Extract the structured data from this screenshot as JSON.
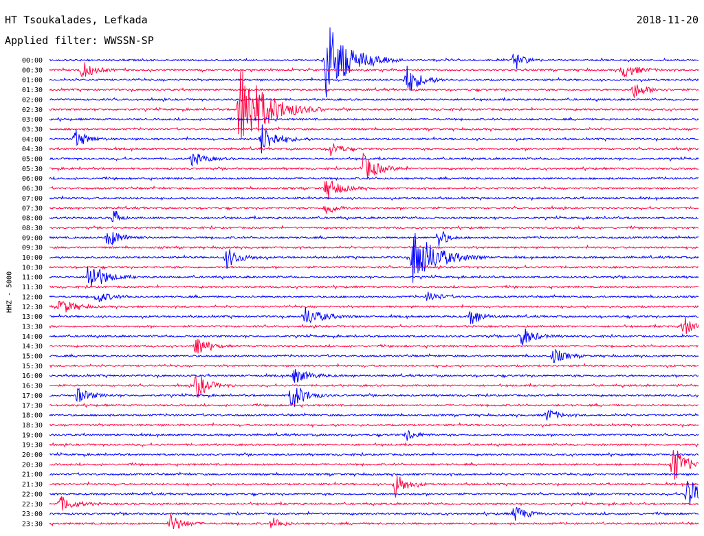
{
  "header": {
    "station": "HT Tsoukalades, Lefkada",
    "filter": "Applied filter: WWSSN-SP",
    "date": "2018-11-20"
  },
  "chart_data": {
    "type": "line",
    "title": "HT Tsoukalades, Lefkada",
    "subtitle": "Applied filter: WWSSN-SP",
    "date": "2018-11-20",
    "ylabel": "HHZ - 5000",
    "colors": [
      "#0000ff",
      "#ff0040"
    ],
    "rows": [
      "00:00",
      "00:30",
      "01:00",
      "01:30",
      "02:00",
      "02:30",
      "03:00",
      "03:30",
      "04:00",
      "04:30",
      "05:00",
      "05:30",
      "06:00",
      "06:30",
      "07:00",
      "07:30",
      "08:00",
      "08:30",
      "09:00",
      "09:30",
      "10:00",
      "10:30",
      "11:00",
      "11:30",
      "12:00",
      "12:30",
      "13:00",
      "13:30",
      "14:00",
      "14:30",
      "15:00",
      "15:30",
      "16:00",
      "16:30",
      "17:00",
      "17:30",
      "18:00",
      "18:30",
      "19:00",
      "19:30",
      "20:00",
      "20:30",
      "21:00",
      "21:30",
      "22:00",
      "22:30",
      "23:00",
      "23:30"
    ],
    "minutes_per_row": 30,
    "events": [
      {
        "row": 0,
        "minute": 12.8,
        "amp": 4.2,
        "dur": 1.6
      },
      {
        "row": 0,
        "minute": 21.5,
        "amp": 1.1,
        "dur": 0.6
      },
      {
        "row": 1,
        "minute": 1.5,
        "amp": 1.0,
        "dur": 0.8
      },
      {
        "row": 1,
        "minute": 26.5,
        "amp": 0.8,
        "dur": 1.0
      },
      {
        "row": 2,
        "minute": 16.5,
        "amp": 1.6,
        "dur": 0.9
      },
      {
        "row": 3,
        "minute": 27.0,
        "amp": 0.9,
        "dur": 0.8
      },
      {
        "row": 5,
        "minute": 8.8,
        "amp": 5.0,
        "dur": 1.8
      },
      {
        "row": 8,
        "minute": 1.2,
        "amp": 1.0,
        "dur": 0.8
      },
      {
        "row": 8,
        "minute": 9.8,
        "amp": 1.6,
        "dur": 1.0
      },
      {
        "row": 9,
        "minute": 13.0,
        "amp": 0.8,
        "dur": 0.7
      },
      {
        "row": 10,
        "minute": 6.6,
        "amp": 0.7,
        "dur": 0.9
      },
      {
        "row": 11,
        "minute": 14.5,
        "amp": 1.5,
        "dur": 1.0
      },
      {
        "row": 13,
        "minute": 12.8,
        "amp": 1.2,
        "dur": 0.9
      },
      {
        "row": 15,
        "minute": 12.8,
        "amp": 0.8,
        "dur": 0.6
      },
      {
        "row": 16,
        "minute": 3.0,
        "amp": 1.2,
        "dur": 0.3
      },
      {
        "row": 18,
        "minute": 2.7,
        "amp": 1.0,
        "dur": 0.9
      },
      {
        "row": 18,
        "minute": 18.0,
        "amp": 1.2,
        "dur": 0.5
      },
      {
        "row": 20,
        "minute": 8.2,
        "amp": 1.1,
        "dur": 0.9
      },
      {
        "row": 20,
        "minute": 16.8,
        "amp": 3.0,
        "dur": 1.6
      },
      {
        "row": 22,
        "minute": 1.8,
        "amp": 1.8,
        "dur": 1.0
      },
      {
        "row": 24,
        "minute": 2.2,
        "amp": 0.6,
        "dur": 0.9
      },
      {
        "row": 24,
        "minute": 17.5,
        "amp": 0.6,
        "dur": 0.8
      },
      {
        "row": 25,
        "minute": 0.5,
        "amp": 0.9,
        "dur": 0.9
      },
      {
        "row": 26,
        "minute": 11.8,
        "amp": 1.0,
        "dur": 1.2
      },
      {
        "row": 26,
        "minute": 19.5,
        "amp": 1.0,
        "dur": 0.7
      },
      {
        "row": 27,
        "minute": 29.3,
        "amp": 1.2,
        "dur": 0.6
      },
      {
        "row": 28,
        "minute": 21.8,
        "amp": 1.2,
        "dur": 0.8
      },
      {
        "row": 29,
        "minute": 6.8,
        "amp": 1.2,
        "dur": 0.7
      },
      {
        "row": 30,
        "minute": 23.3,
        "amp": 0.8,
        "dur": 0.8
      },
      {
        "row": 32,
        "minute": 11.3,
        "amp": 0.8,
        "dur": 1.0
      },
      {
        "row": 33,
        "minute": 6.8,
        "amp": 1.4,
        "dur": 0.8
      },
      {
        "row": 34,
        "minute": 1.3,
        "amp": 0.8,
        "dur": 0.9
      },
      {
        "row": 34,
        "minute": 11.2,
        "amp": 1.5,
        "dur": 0.9
      },
      {
        "row": 36,
        "minute": 23.0,
        "amp": 0.7,
        "dur": 0.7
      },
      {
        "row": 38,
        "minute": 16.5,
        "amp": 0.6,
        "dur": 0.7
      },
      {
        "row": 41,
        "minute": 28.8,
        "amp": 2.2,
        "dur": 0.8
      },
      {
        "row": 43,
        "minute": 16.0,
        "amp": 1.4,
        "dur": 0.7
      },
      {
        "row": 44,
        "minute": 29.5,
        "amp": 1.8,
        "dur": 0.8
      },
      {
        "row": 45,
        "minute": 0.5,
        "amp": 0.8,
        "dur": 1.0
      },
      {
        "row": 46,
        "minute": 21.5,
        "amp": 0.9,
        "dur": 0.8
      },
      {
        "row": 47,
        "minute": 5.6,
        "amp": 1.0,
        "dur": 0.8
      },
      {
        "row": 47,
        "minute": 10.3,
        "amp": 0.7,
        "dur": 0.6
      }
    ]
  }
}
